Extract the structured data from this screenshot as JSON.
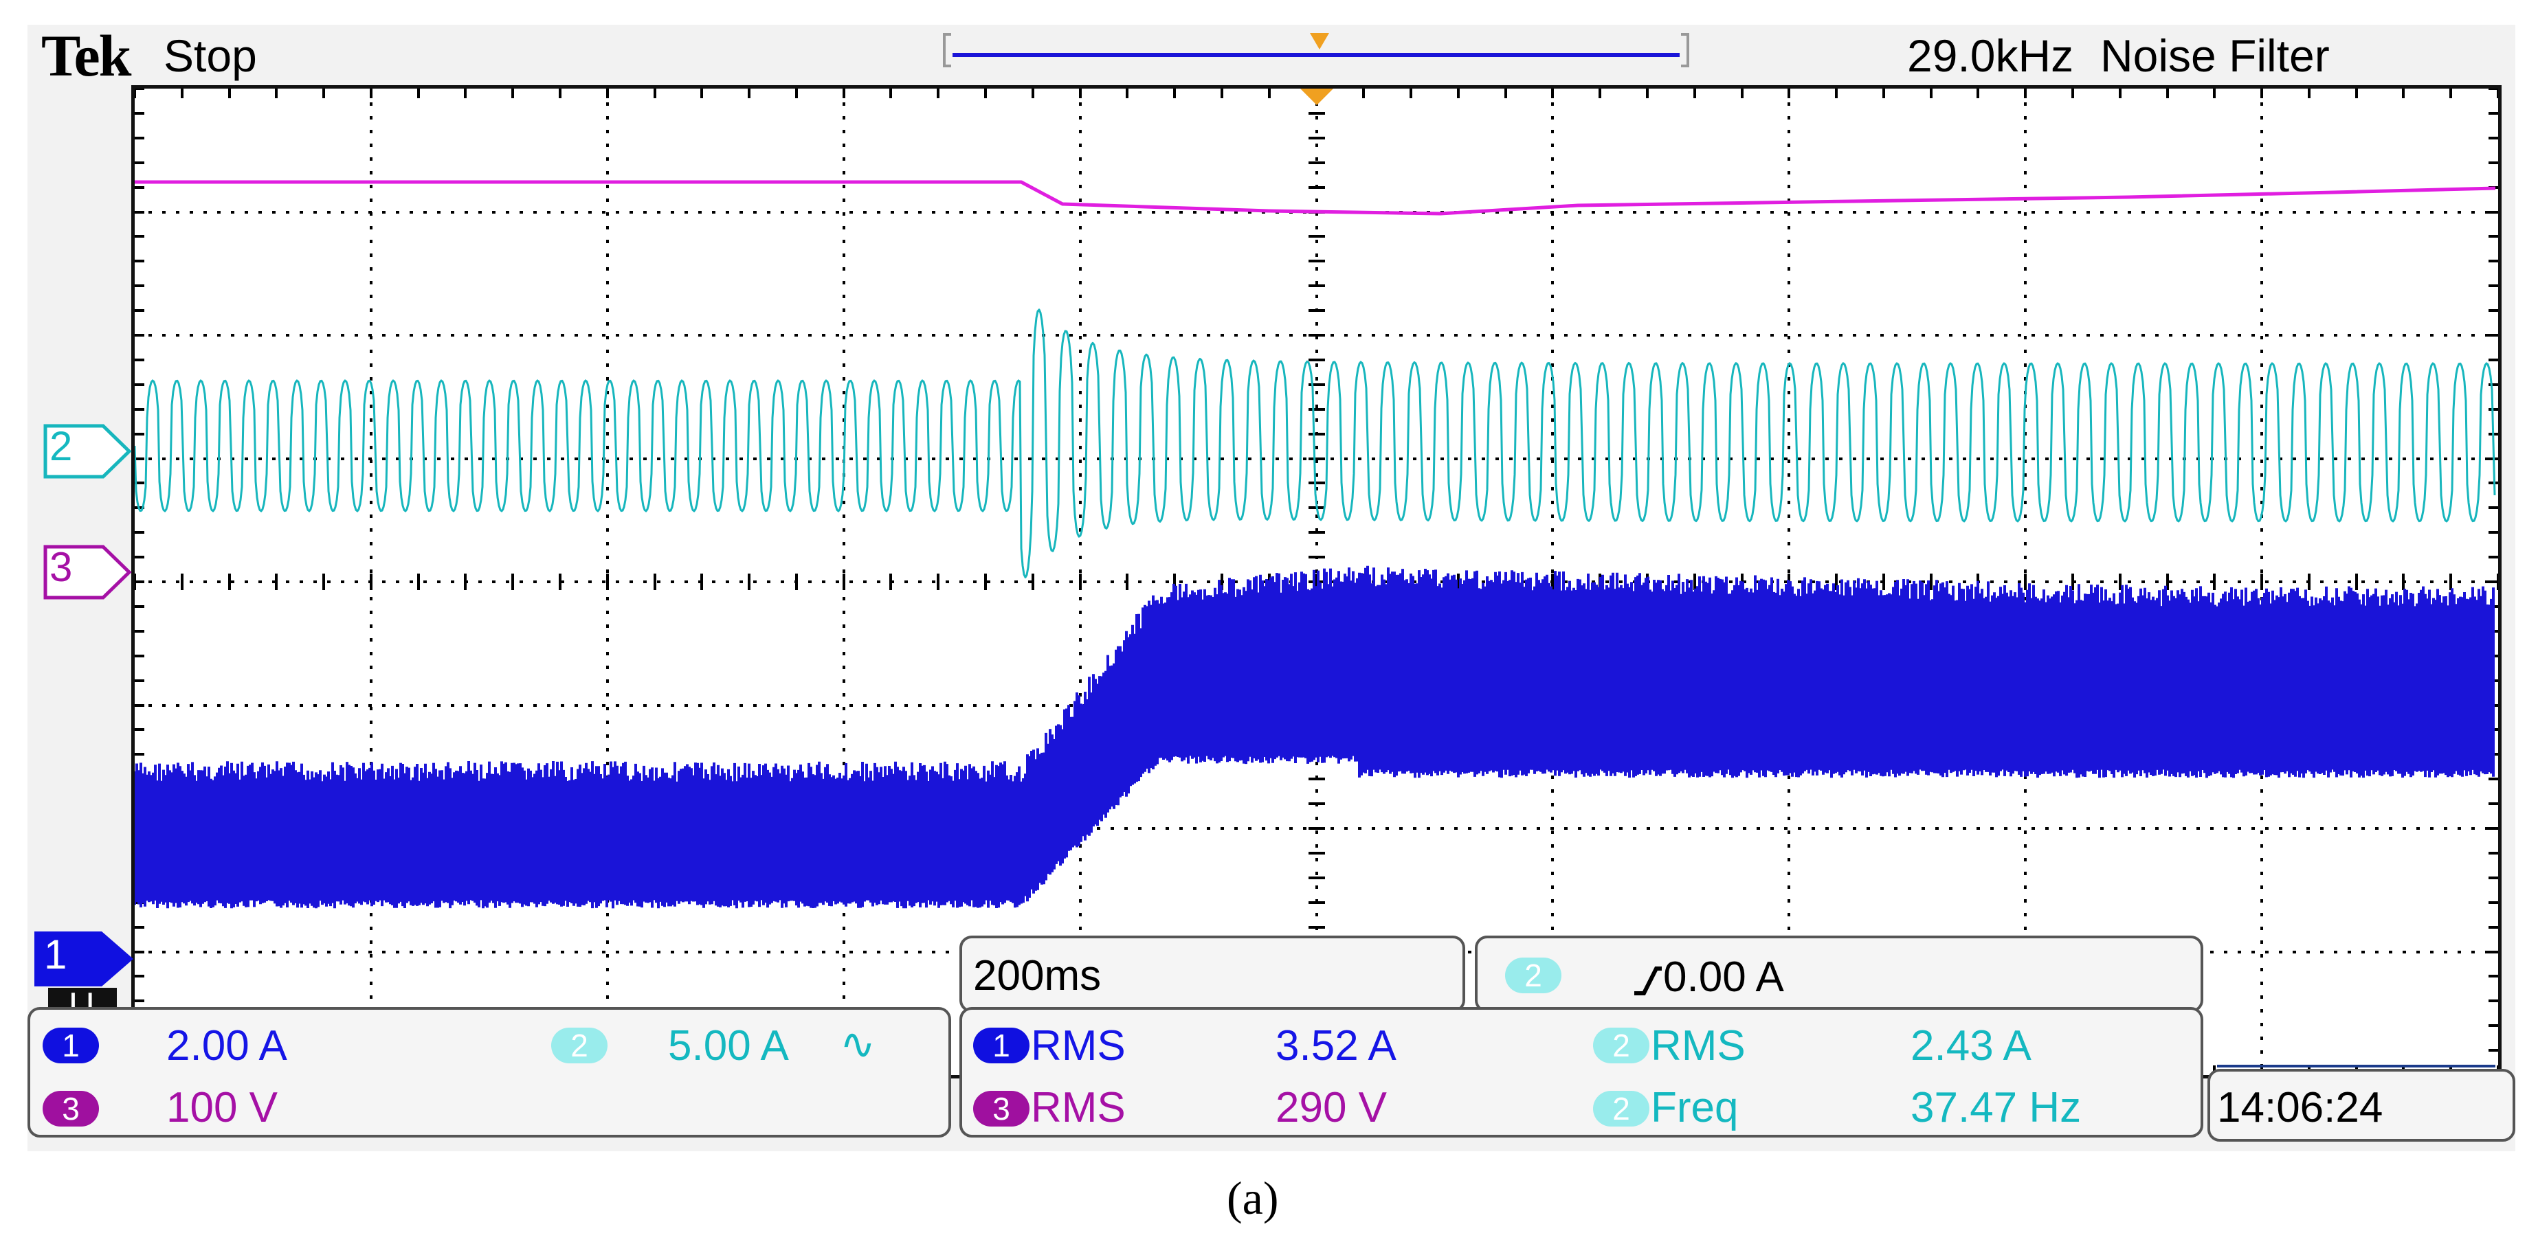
{
  "header": {
    "brand": "Tek",
    "run_state": "Stop",
    "bandwidth": "29.0kHz",
    "filter": "Noise Filter"
  },
  "markers": {
    "ch1": "1",
    "ch2": "2",
    "ch3": "3",
    "ground": "U"
  },
  "timebase": {
    "scale": "200ms",
    "trigger_channel": "2",
    "trigger_level": "0.00 A"
  },
  "channels": [
    {
      "num": "1",
      "scale": "2.00 A"
    },
    {
      "num": "2",
      "scale": "5.00 A",
      "coupling": "∿"
    },
    {
      "num": "3",
      "scale": "100 V"
    }
  ],
  "measurements": [
    {
      "ch": "1",
      "type": "RMS",
      "value": "3.52 A"
    },
    {
      "ch": "2",
      "type": "RMS",
      "value": "2.43 A"
    },
    {
      "ch": "3",
      "type": "RMS",
      "value": "290 V"
    },
    {
      "ch": "2",
      "type": "Freq",
      "value": "37.47 Hz"
    }
  ],
  "clock": "14:06:24",
  "caption": "(a)",
  "colors": {
    "ch1": "#1a14d8",
    "ch2": "#17b6bd",
    "ch3": "#e01ee0",
    "trigger": "#f0a020"
  }
}
